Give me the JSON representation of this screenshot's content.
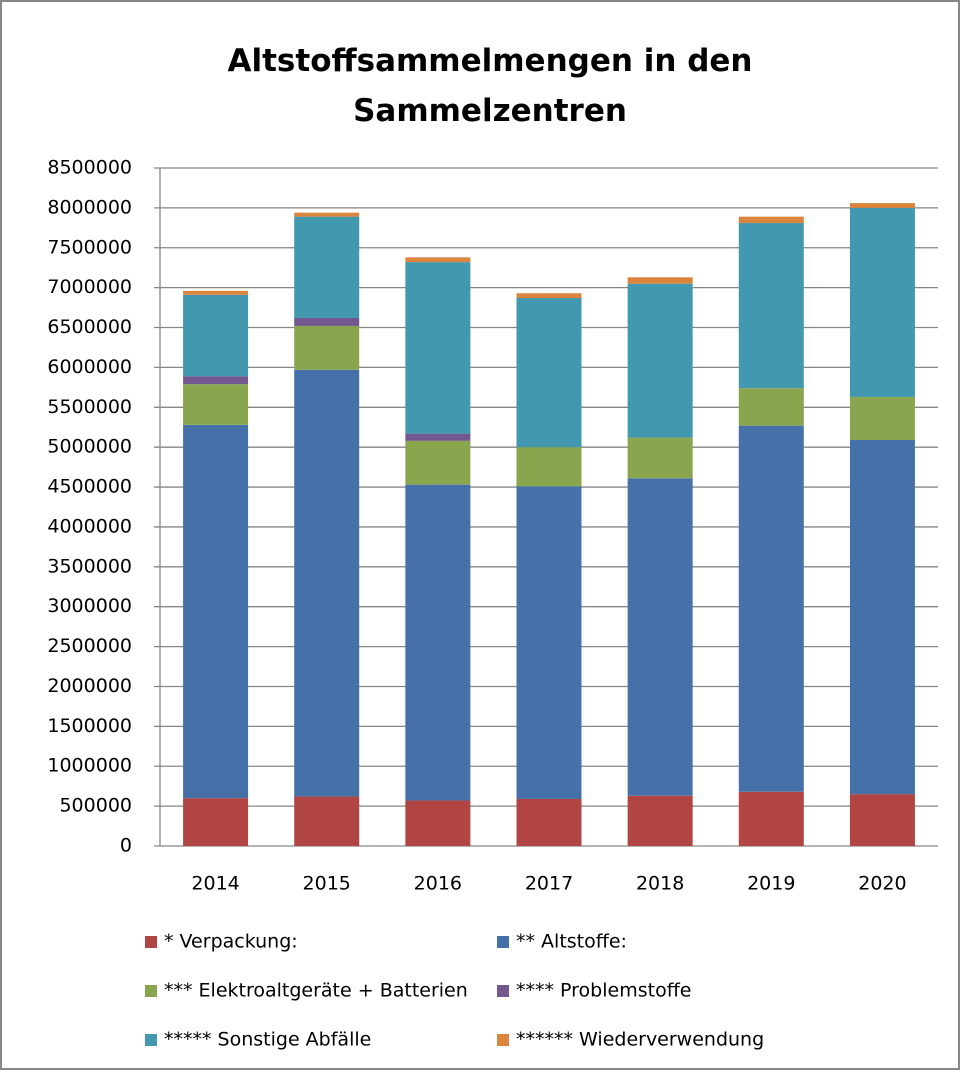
{
  "chart_data": {
    "type": "stacked_bar",
    "title": "Altstoffsammelmengen in den Sammelzentren",
    "categories": [
      "2014",
      "2015",
      "2016",
      "2017",
      "2018",
      "2019",
      "2020"
    ],
    "series": [
      {
        "name": "* Verpackung:",
        "color": "#b04543",
        "values": [
          600000,
          620000,
          570000,
          590000,
          630000,
          680000,
          650000
        ]
      },
      {
        "name": "** Altstoffe:",
        "color": "#4671a8",
        "values": [
          4680000,
          5350000,
          3960000,
          3920000,
          3980000,
          4590000,
          4440000
        ]
      },
      {
        "name": "*** Elektroaltgeräte + Batterien",
        "color": "#89a54e",
        "values": [
          510000,
          550000,
          550000,
          490000,
          510000,
          470000,
          540000
        ]
      },
      {
        "name": "**** Problemstoffe",
        "color": "#71588f",
        "values": [
          100000,
          100000,
          90000,
          0,
          0,
          0,
          0
        ]
      },
      {
        "name": "***** Sonstige Abfälle",
        "color": "#4198af",
        "values": [
          1020000,
          1270000,
          2150000,
          1870000,
          1930000,
          2070000,
          2370000
        ]
      },
      {
        "name": "****** Wiederverwendung",
        "color": "#db843d",
        "values": [
          50000,
          50000,
          60000,
          60000,
          80000,
          80000,
          60000
        ]
      }
    ],
    "ylim": [
      0,
      8500000
    ],
    "yticks": [
      0,
      500000,
      1000000,
      1500000,
      2000000,
      2500000,
      3000000,
      3500000,
      4000000,
      4500000,
      5000000,
      5500000,
      6000000,
      6500000,
      7000000,
      7500000,
      8000000,
      8500000
    ],
    "grid": true
  }
}
